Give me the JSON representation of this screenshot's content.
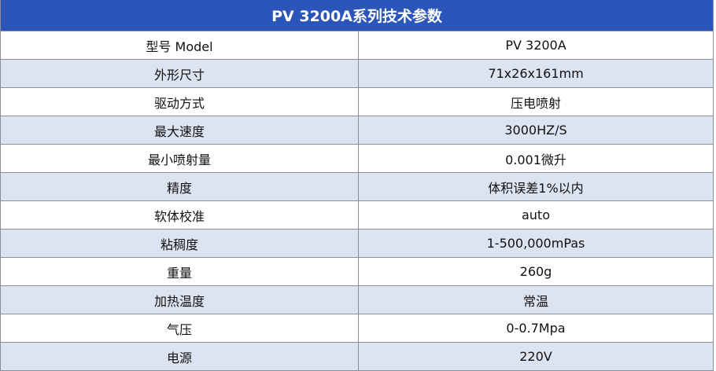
{
  "title": "PV 3200A系列技术参数",
  "colors": {
    "header_bg": "#2c55b9",
    "alt_row_bg": "#dce3f1",
    "border": "#8a8f99"
  },
  "rows": [
    {
      "label": "型号 Model",
      "value": "PV 3200A"
    },
    {
      "label": "外形尺寸",
      "value": "71x26x161mm"
    },
    {
      "label": "驱动方式",
      "value": "压电喷射"
    },
    {
      "label": "最大速度",
      "value": "3000HZ/S"
    },
    {
      "label": "最小喷射量",
      "value": "0.001微升"
    },
    {
      "label": "精度",
      "value": "体积误差1%以内"
    },
    {
      "label": "软体校准",
      "value": "auto"
    },
    {
      "label": "粘稠度",
      "value": "1-500,000mPas"
    },
    {
      "label": "重量",
      "value": "260g"
    },
    {
      "label": "加热温度",
      "value": "常温"
    },
    {
      "label": "气压",
      "value": "0-0.7Mpa"
    },
    {
      "label": "电源",
      "value": "220V"
    }
  ]
}
